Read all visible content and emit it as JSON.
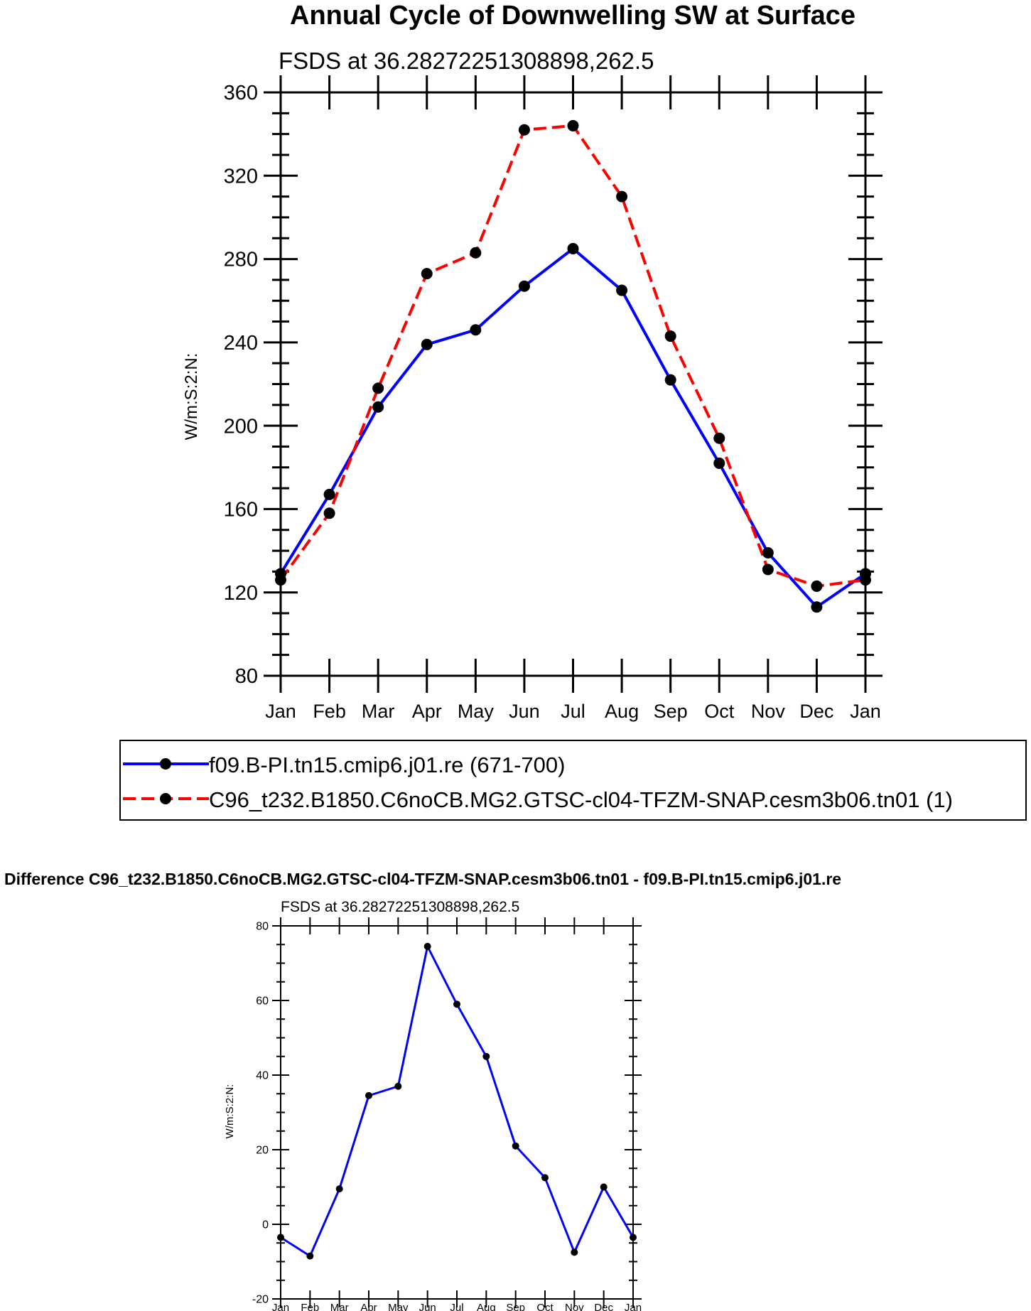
{
  "chart_data": [
    {
      "type": "line",
      "title": "Annual Cycle of Downwelling SW at Surface",
      "subtitle": "FSDS at 36.28272251308898,262.5",
      "ylabel": "W/m:S:2:N:",
      "xlabel": "",
      "categories": [
        "Jan",
        "Feb",
        "Mar",
        "Apr",
        "May",
        "Jun",
        "Jul",
        "Aug",
        "Sep",
        "Oct",
        "Nov",
        "Dec",
        "Jan"
      ],
      "ylim": [
        80,
        360
      ],
      "yticks": [
        80,
        120,
        160,
        200,
        240,
        280,
        320,
        360
      ],
      "series": [
        {
          "name": "f09.B-PI.tn15.cmip6.j01.re (671-700)",
          "color": "#0000ff",
          "style": "solid",
          "values": [
            129,
            167,
            209,
            239,
            246,
            267,
            285,
            265,
            222,
            182,
            139,
            113,
            129
          ]
        },
        {
          "name": "C96_t232.B1850.C6noCB.MG2.GTSC-cl04-TFZM-SNAP.cesm3b06.tn01 (1)",
          "color": "#ff0000",
          "style": "dashed",
          "values": [
            126,
            158,
            218,
            273,
            283,
            342,
            344,
            310,
            243,
            194,
            131,
            123,
            126
          ]
        }
      ],
      "legend": "below"
    },
    {
      "type": "line",
      "title": "Difference C96_t232.B1850.C6noCB.MG2.GTSC-cl04-TFZM-SNAP.cesm3b06.tn01 - f09.B-PI.tn15.cmip6.j01.re",
      "subtitle": "FSDS at 36.28272251308898,262.5",
      "ylabel": "W/m:S:2:N:",
      "xlabel": "",
      "categories": [
        "Jan",
        "Feb",
        "Mar",
        "Apr",
        "May",
        "Jun",
        "Jul",
        "Aug",
        "Sep",
        "Oct",
        "Nov",
        "Dec",
        "Jan"
      ],
      "ylim": [
        -20,
        80
      ],
      "yticks": [
        -20,
        0,
        20,
        40,
        60,
        80
      ],
      "series": [
        {
          "name": "difference",
          "color": "#0000ff",
          "style": "solid",
          "values": [
            -3.5,
            -8.5,
            9.5,
            34.5,
            37,
            74.5,
            59,
            45,
            21,
            12.5,
            -7.5,
            10,
            -3.5
          ]
        }
      ]
    }
  ]
}
